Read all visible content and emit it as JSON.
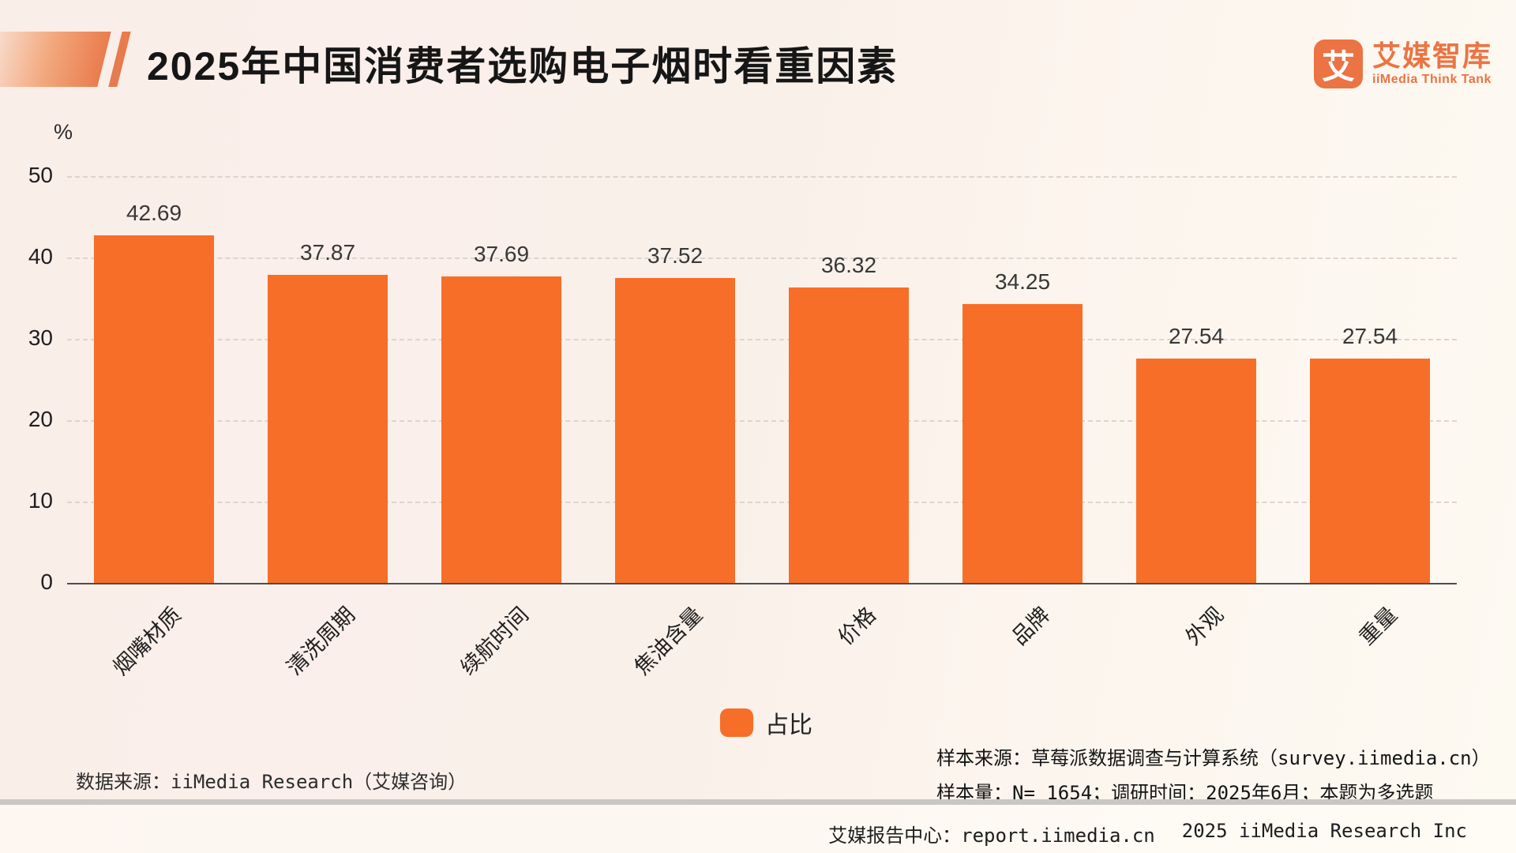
{
  "header": {
    "title": "2025年中国消费者选购电子烟时看重因素",
    "logo": {
      "mark_glyph": "艾",
      "name_cn": "艾媒智库",
      "name_en": "iiMedia Think Tank"
    }
  },
  "chart_data": {
    "type": "bar",
    "title": "2025年中国消费者选购电子烟时看重因素",
    "unit_label": "%",
    "categories": [
      "烟嘴材质",
      "清洗周期",
      "续航时间",
      "焦油含量",
      "价格",
      "品牌",
      "外观",
      "重量"
    ],
    "values": [
      42.69,
      37.87,
      37.69,
      37.52,
      36.32,
      34.25,
      27.54,
      27.54
    ],
    "series_name": "占比",
    "xlabel": "",
    "ylabel": "%",
    "ylim": [
      0,
      50
    ],
    "yticks": [
      0,
      10,
      20,
      30,
      40,
      50
    ],
    "grid": "horizontal dashed gridlines on",
    "legend_position": "bottom center",
    "bar_color": "#f76e28",
    "value_labels_shown": true,
    "category_label_rotation_deg": -45
  },
  "legend": {
    "label": "占比",
    "color": "#f76e28"
  },
  "footnotes": {
    "data_source": "数据来源：iiMedia Research（艾媒咨询）",
    "sample_source": "样本来源：草莓派数据调查与计算系统（survey.iimedia.cn）",
    "sample_info": "样本量：N= 1654；调研时间：2025年6月；本题为多选题"
  },
  "footer": {
    "report_center": "艾媒报告中心：report.iimedia.cn",
    "copyright": "2025 iiMedia Research Inc"
  },
  "colors": {
    "bar": "#f76e28",
    "accent_orange": "#ec7343",
    "background": "#fbf1ec",
    "gridline": "#ddd4ce",
    "axis": "#4d4d4d"
  }
}
